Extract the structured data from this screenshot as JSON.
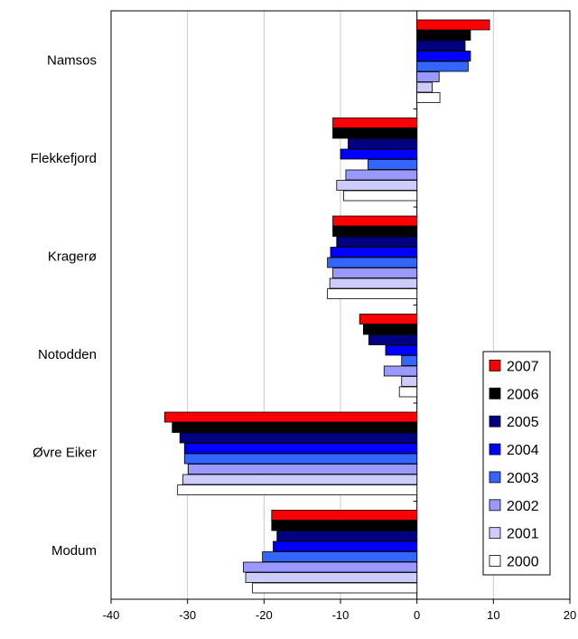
{
  "chart_data": {
    "type": "bar",
    "orientation": "horizontal",
    "categories": [
      "Namsos",
      "Flekkefjord",
      "Kragerø",
      "Notodden",
      "Øvre Eiker",
      "Modum"
    ],
    "series": [
      {
        "name": "2007",
        "color": "#ff0000",
        "values": [
          9.5,
          -11,
          -11,
          -7.5,
          -33,
          -19
        ]
      },
      {
        "name": "2006",
        "color": "#000000",
        "values": [
          7,
          -11,
          -11,
          -7,
          -32,
          -19
        ]
      },
      {
        "name": "2005",
        "color": "#000080",
        "values": [
          6.3,
          -9,
          -10.5,
          -6.3,
          -31,
          -18.3
        ]
      },
      {
        "name": "2004",
        "color": "#0000ff",
        "values": [
          7,
          -10,
          -11.3,
          -4.1,
          -30.4,
          -18.8
        ]
      },
      {
        "name": "2003",
        "color": "#3366ff",
        "values": [
          6.7,
          -6.4,
          -11.7,
          -2,
          -30.4,
          -20.2
        ]
      },
      {
        "name": "2002",
        "color": "#9999ff",
        "values": [
          2.9,
          -9.3,
          -11,
          -4.3,
          -29.9,
          -22.7
        ]
      },
      {
        "name": "2001",
        "color": "#ccccff",
        "values": [
          2,
          -10.5,
          -11.4,
          -2,
          -30.6,
          -22.4
        ]
      },
      {
        "name": "2000",
        "color": "#ffffff",
        "values": [
          3,
          -9.6,
          -11.7,
          -2.3,
          -31.3,
          -21.5
        ]
      }
    ],
    "xlim": [
      -40,
      20
    ],
    "xticks": [
      -40,
      -30,
      -20,
      -10,
      0,
      10,
      20
    ],
    "grid": "vertical",
    "legend_order": [
      "2007",
      "2006",
      "2005",
      "2004",
      "2003",
      "2002",
      "2001",
      "2000"
    ],
    "legend_position": "bottom-right",
    "title": "",
    "xlabel": "",
    "ylabel": ""
  }
}
